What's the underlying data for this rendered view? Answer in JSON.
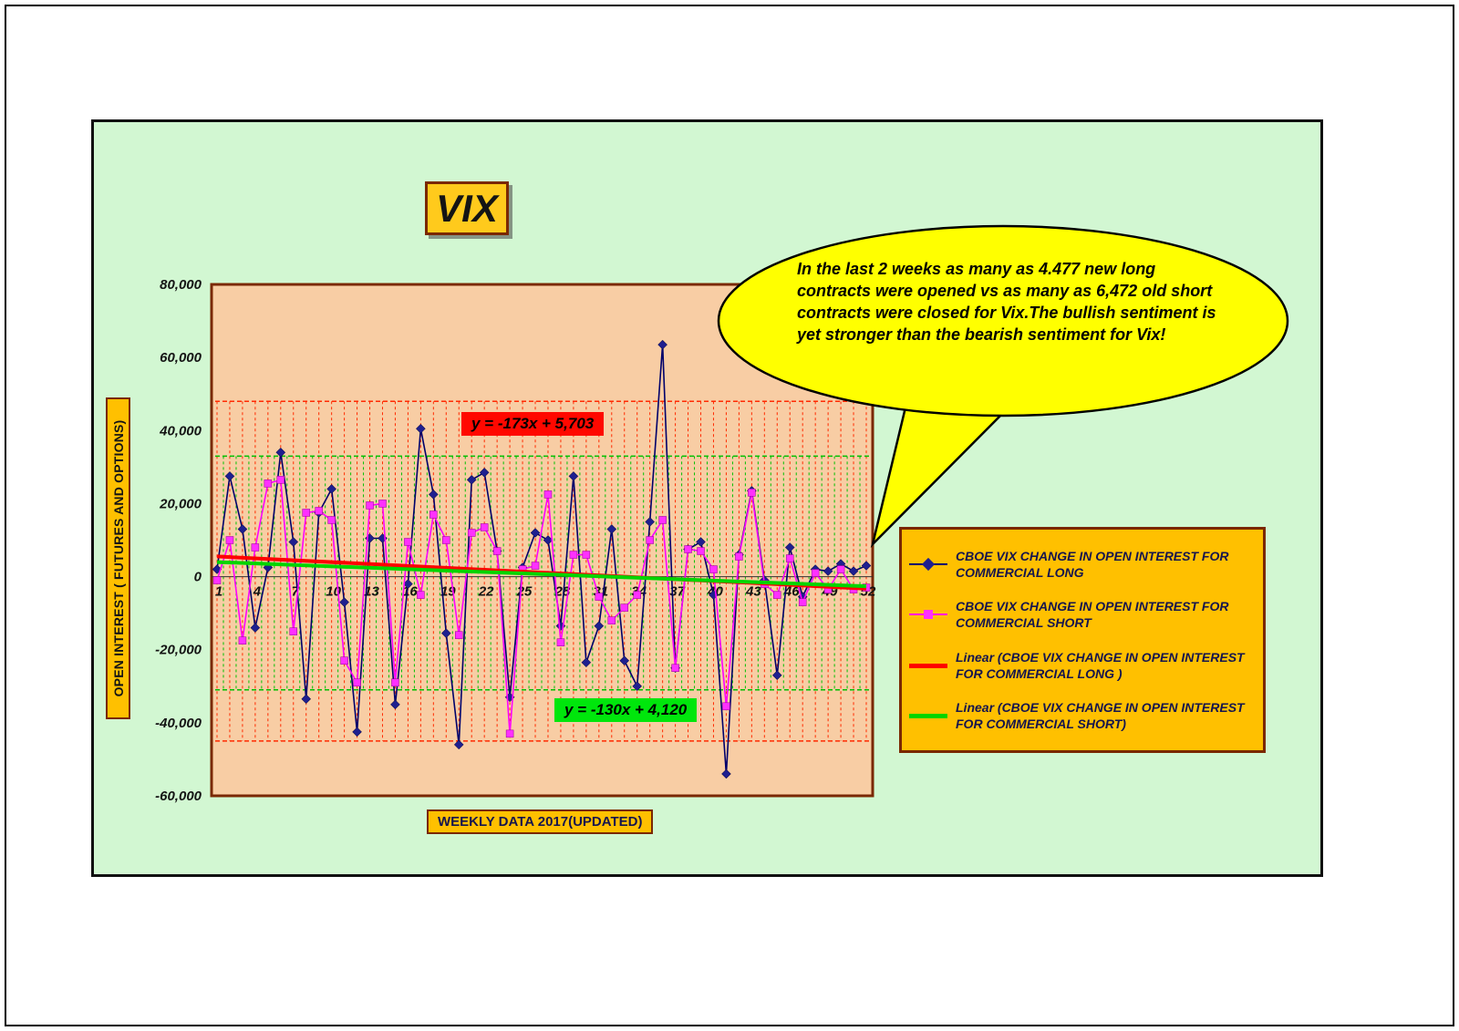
{
  "title": "VIX",
  "axis": {
    "y_title": "OPEN INTEREST ( FUTURES AND OPTIONS)",
    "x_title": "WEEKLY DATA 2017(UPDATED)"
  },
  "annotation_text": "In the last 2 weeks as many as 4.477 new long contracts were opened vs as many as 6,472 old short contracts were closed for Vix.The bullish sentiment is yet stronger than the bearish sentiment for Vix!",
  "equations": {
    "long": "y = -173x + 5,703",
    "short": "y = -130x + 4,120"
  },
  "legend": [
    {
      "label": "CBOE VIX CHANGE IN OPEN INTEREST FOR COMMERCIAL LONG",
      "marker": "diamond",
      "color": "#1f1f8f",
      "line_color": "#00006b"
    },
    {
      "label": "CBOE VIX CHANGE IN OPEN INTEREST FOR COMMERCIAL SHORT",
      "marker": "square",
      "color": "#ff30ff",
      "line_color": "#ff00ff"
    },
    {
      "label": "Linear (CBOE VIX CHANGE IN OPEN INTEREST FOR COMMERCIAL LONG )",
      "marker": "line",
      "color": "#ff0000",
      "line_color": "#ff0000"
    },
    {
      "label": "Linear (CBOE VIX CHANGE IN OPEN INTEREST FOR COMMERCIAL SHORT)",
      "marker": "line",
      "color": "#00d500",
      "line_color": "#00d500"
    }
  ],
  "colors": {
    "panel_bg": "#d2f7d2",
    "plot_bg": "#f8cda4",
    "plot_border": "#7a2800",
    "gold": "#ffc000",
    "bubble": "#ffff00",
    "long_series": "#00006b",
    "short_series": "#ff00ff",
    "long_trend": "#ff0000",
    "short_trend": "#00d500"
  },
  "chart_data": {
    "type": "line",
    "title": "VIX",
    "xlabel": "WEEKLY DATA 2017(UPDATED)",
    "ylabel": "OPEN INTEREST ( FUTURES AND OPTIONS)",
    "weeks": 52,
    "ylim": [
      -60000,
      80000
    ],
    "x_label_ticks": [
      1,
      4,
      7,
      10,
      13,
      16,
      19,
      22,
      25,
      28,
      31,
      34,
      37,
      40,
      43,
      46,
      49,
      52
    ],
    "y_ticks": [
      {
        "v": 80000,
        "label": "80,000"
      },
      {
        "v": 60000,
        "label": "60,000"
      },
      {
        "v": 40000,
        "label": "40,000"
      },
      {
        "v": 20000,
        "label": "20,000"
      },
      {
        "v": 0,
        "label": "0"
      },
      {
        "v": -20000,
        "label": "-20,000"
      },
      {
        "v": -40000,
        "label": "-40,000"
      },
      {
        "v": -60000,
        "label": "-60,000"
      }
    ],
    "series": [
      {
        "name": "CBOE VIX CHANGE IN OPEN INTEREST FOR COMMERCIAL LONG",
        "marker": "diamond",
        "color": "#00006b",
        "marker_color": "#1f1f8f",
        "values": [
          2000,
          27500,
          13000,
          -14000,
          2500,
          34000,
          9500,
          -33500,
          17500,
          24000,
          -7000,
          -42500,
          10500,
          10500,
          -35000,
          -2000,
          40500,
          22500,
          -15500,
          -46000,
          26500,
          28500,
          7000,
          -33000,
          2500,
          12000,
          10000,
          -13500,
          27500,
          -23500,
          -13500,
          13000,
          -23000,
          -30000,
          15000,
          63500,
          -25000,
          7500,
          9500,
          -5000,
          -54000,
          6000,
          23500,
          -1000,
          -27000,
          8000,
          -5500,
          2000,
          1500,
          3500,
          1500,
          3000
        ]
      },
      {
        "name": "CBOE VIX CHANGE IN OPEN INTEREST FOR COMMERCIAL SHORT",
        "marker": "square",
        "color": "#ff00ff",
        "marker_color": "#ff30ff",
        "values": [
          -1000,
          10000,
          -17500,
          8000,
          25500,
          26500,
          -15000,
          17500,
          18000,
          15500,
          -23000,
          -29000,
          19500,
          20000,
          -29000,
          9500,
          -5000,
          17000,
          10000,
          -16000,
          12000,
          13500,
          7000,
          -43000,
          2000,
          3000,
          22500,
          -18000,
          6000,
          6000,
          -5500,
          -12000,
          -8500,
          -5000,
          10000,
          15500,
          -25000,
          7500,
          7000,
          2000,
          -35500,
          5500,
          23000,
          -2000,
          -5000,
          5000,
          -7000,
          1000,
          -3500,
          2000,
          -3500,
          -3000
        ]
      }
    ],
    "trendlines": [
      {
        "name": "Linear (CBOE VIX CHANGE IN OPEN INTEREST FOR COMMERCIAL LONG )",
        "slope": -173,
        "intercept": 5703,
        "color": "#ff0000",
        "equation": "y = -173x + 5,703"
      },
      {
        "name": "Linear (CBOE VIX CHANGE IN OPEN INTEREST FOR COMMERCIAL SHORT)",
        "slope": -130,
        "intercept": 4120,
        "color": "#00d500",
        "equation": "y = -130x + 4,120"
      }
    ],
    "bands": [
      {
        "color": "#ff2a00",
        "top": 48000,
        "bottom": -45000,
        "x_offset": 0
      },
      {
        "color": "#00c000",
        "top": 33000,
        "bottom": -31000,
        "x_offset": 7
      }
    ]
  }
}
